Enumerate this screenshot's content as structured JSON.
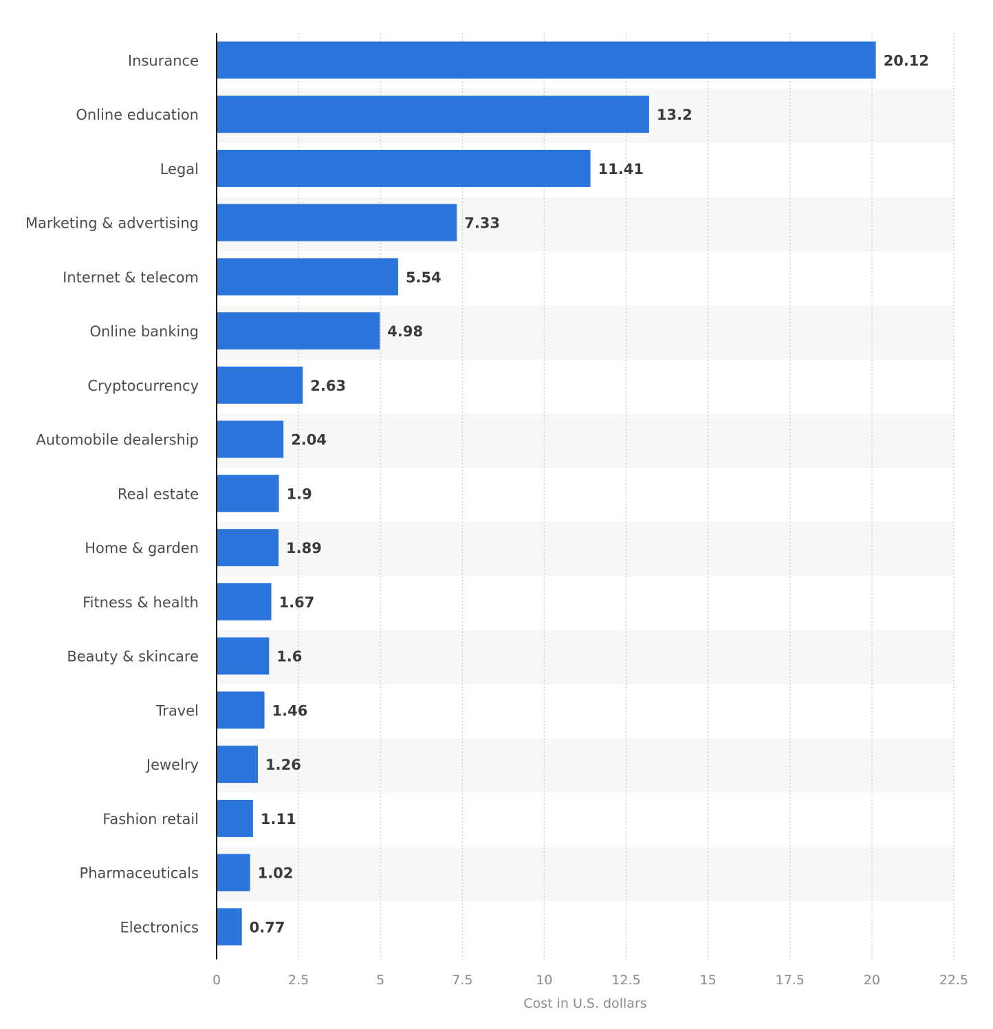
{
  "colors": {
    "bar": "#2a74dc",
    "band": "#f7f7f7",
    "category_text": "#4b4b4b",
    "value_text": "#3a3a3a",
    "tick_text": "#8a8a8a"
  },
  "chart_data": {
    "type": "bar",
    "orientation": "horizontal",
    "categories": [
      "Insurance",
      "Online education",
      "Legal",
      "Marketing & advertising",
      "Internet & telecom",
      "Online banking",
      "Cryptocurrency",
      "Automobile dealership",
      "Real estate",
      "Home & garden",
      "Fitness & health",
      "Beauty & skincare",
      "Travel",
      "Jewelry",
      "Fashion retail",
      "Pharmaceuticals",
      "Electronics"
    ],
    "values": [
      20.12,
      13.2,
      11.41,
      7.33,
      5.54,
      4.98,
      2.63,
      2.04,
      1.9,
      1.89,
      1.67,
      1.6,
      1.46,
      1.26,
      1.11,
      1.02,
      0.77
    ],
    "value_labels": [
      "20.12",
      "13.2",
      "11.41",
      "7.33",
      "5.54",
      "4.98",
      "2.63",
      "2.04",
      "1.9",
      "1.89",
      "1.67",
      "1.6",
      "1.46",
      "1.26",
      "1.11",
      "1.02",
      "0.77"
    ],
    "x_ticks": [
      0,
      2.5,
      5,
      7.5,
      10,
      12.5,
      15,
      17.5,
      20,
      22.5
    ],
    "x_tick_labels": [
      "0",
      "2.5",
      "5",
      "7.5",
      "10",
      "12.5",
      "15",
      "17.5",
      "20",
      "22.5"
    ],
    "xlim": [
      0,
      22.5
    ],
    "xlabel": "Cost in U.S. dollars",
    "ylabel": "",
    "title": "",
    "grid": "vertical dotted",
    "legend": "none"
  }
}
